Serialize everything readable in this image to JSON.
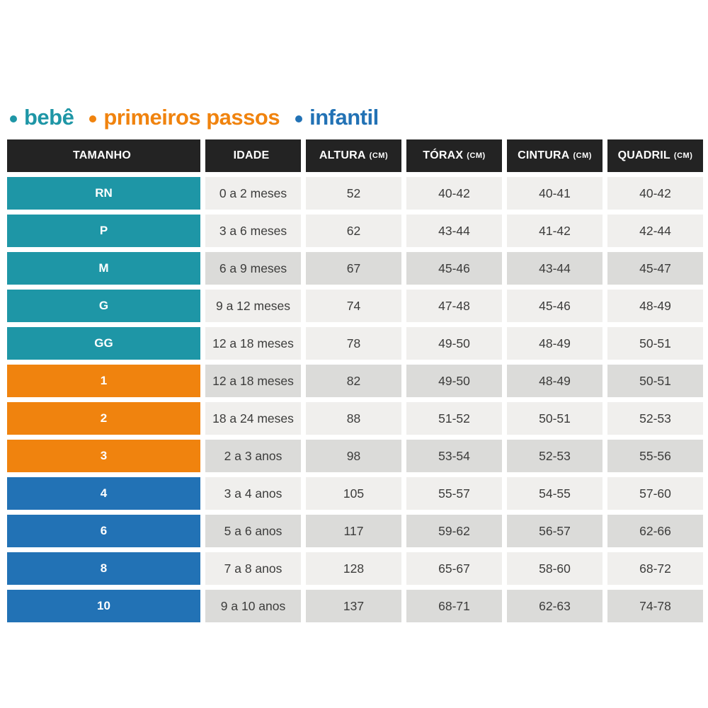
{
  "legend": {
    "items": [
      {
        "id": "bebe",
        "label": "bebê",
        "color": "#1E96A6"
      },
      {
        "id": "primeiros-passos",
        "label": "primeiros passos",
        "color": "#F0830E"
      },
      {
        "id": "infantil",
        "label": "infantil",
        "color": "#2272B5"
      }
    ]
  },
  "table": {
    "columns": [
      {
        "label": "TAMANHO",
        "unit": ""
      },
      {
        "label": "IDADE",
        "unit": ""
      },
      {
        "label": "ALTURA",
        "unit": "(CM)"
      },
      {
        "label": "TÓRAX",
        "unit": "(CM)"
      },
      {
        "label": "CINTURA",
        "unit": "(CM)"
      },
      {
        "label": "QUADRIL",
        "unit": "(CM)"
      }
    ],
    "rows": [
      {
        "size": "RN",
        "group": "bebe",
        "age": "0 a 2 meses",
        "height": "52",
        "chest": "40-42",
        "waist": "40-41",
        "hip": "40-42",
        "shade": "light"
      },
      {
        "size": "P",
        "group": "bebe",
        "age": "3 a 6 meses",
        "height": "62",
        "chest": "43-44",
        "waist": "41-42",
        "hip": "42-44",
        "shade": "light"
      },
      {
        "size": "M",
        "group": "bebe",
        "age": "6 a 9 meses",
        "height": "67",
        "chest": "45-46",
        "waist": "43-44",
        "hip": "45-47",
        "shade": "dark"
      },
      {
        "size": "G",
        "group": "bebe",
        "age": "9 a 12 meses",
        "height": "74",
        "chest": "47-48",
        "waist": "45-46",
        "hip": "48-49",
        "shade": "light"
      },
      {
        "size": "GG",
        "group": "bebe",
        "age": "12 a 18 meses",
        "height": "78",
        "chest": "49-50",
        "waist": "48-49",
        "hip": "50-51",
        "shade": "light"
      },
      {
        "size": "1",
        "group": "primeiros-passos",
        "age": "12 a 18 meses",
        "height": "82",
        "chest": "49-50",
        "waist": "48-49",
        "hip": "50-51",
        "shade": "dark"
      },
      {
        "size": "2",
        "group": "primeiros-passos",
        "age": "18 a 24 meses",
        "height": "88",
        "chest": "51-52",
        "waist": "50-51",
        "hip": "52-53",
        "shade": "light"
      },
      {
        "size": "3",
        "group": "primeiros-passos",
        "age": "2 a 3 anos",
        "height": "98",
        "chest": "53-54",
        "waist": "52-53",
        "hip": "55-56",
        "shade": "dark"
      },
      {
        "size": "4",
        "group": "infantil",
        "age": "3 a 4 anos",
        "height": "105",
        "chest": "55-57",
        "waist": "54-55",
        "hip": "57-60",
        "shade": "light"
      },
      {
        "size": "6",
        "group": "infantil",
        "age": "5 a 6 anos",
        "height": "117",
        "chest": "59-62",
        "waist": "56-57",
        "hip": "62-66",
        "shade": "dark"
      },
      {
        "size": "8",
        "group": "infantil",
        "age": "7 a 8 anos",
        "height": "128",
        "chest": "65-67",
        "waist": "58-60",
        "hip": "68-72",
        "shade": "light"
      },
      {
        "size": "10",
        "group": "infantil",
        "age": "9 a 10 anos",
        "height": "137",
        "chest": "68-71",
        "waist": "62-63",
        "hip": "74-78",
        "shade": "dark"
      }
    ]
  },
  "colors": {
    "group_colors": {
      "bebe": "#1E96A6",
      "primeiros-passos": "#F0830E",
      "infantil": "#2272B5"
    },
    "header_bg": "#232323",
    "header_text": "#FFFFFF",
    "row_light": "#F0EFED",
    "row_dark": "#DBDBD9",
    "cell_text": "#3C3C3B",
    "page_bg": "#FFFFFF"
  },
  "chart_data": {
    "type": "table",
    "title": "",
    "legend": [
      "bebê",
      "primeiros passos",
      "infantil"
    ],
    "columns": [
      "TAMANHO",
      "IDADE",
      "ALTURA (CM)",
      "TÓRAX (CM)",
      "CINTURA (CM)",
      "QUADRIL (CM)"
    ],
    "rows": [
      [
        "RN",
        "0 a 2 meses",
        "52",
        "40-42",
        "40-41",
        "40-42"
      ],
      [
        "P",
        "3 a 6 meses",
        "62",
        "43-44",
        "41-42",
        "42-44"
      ],
      [
        "M",
        "6 a 9 meses",
        "67",
        "45-46",
        "43-44",
        "45-47"
      ],
      [
        "G",
        "9 a 12 meses",
        "74",
        "47-48",
        "45-46",
        "48-49"
      ],
      [
        "GG",
        "12 a 18 meses",
        "78",
        "49-50",
        "48-49",
        "50-51"
      ],
      [
        "1",
        "12 a 18 meses",
        "82",
        "49-50",
        "48-49",
        "50-51"
      ],
      [
        "2",
        "18 a 24 meses",
        "88",
        "51-52",
        "50-51",
        "52-53"
      ],
      [
        "3",
        "2 a 3 anos",
        "98",
        "53-54",
        "52-53",
        "55-56"
      ],
      [
        "4",
        "3 a 4 anos",
        "105",
        "55-57",
        "54-55",
        "57-60"
      ],
      [
        "6",
        "5 a 6 anos",
        "117",
        "59-62",
        "56-57",
        "62-66"
      ],
      [
        "8",
        "7 a 8 anos",
        "128",
        "65-67",
        "58-60",
        "68-72"
      ],
      [
        "10",
        "9 a 10 anos",
        "137",
        "68-71",
        "62-63",
        "74-78"
      ]
    ],
    "row_groups": {
      "bebê": [
        "RN",
        "P",
        "M",
        "G",
        "GG"
      ],
      "primeiros passos": [
        "1",
        "2",
        "3"
      ],
      "infantil": [
        "4",
        "6",
        "8",
        "10"
      ]
    }
  }
}
